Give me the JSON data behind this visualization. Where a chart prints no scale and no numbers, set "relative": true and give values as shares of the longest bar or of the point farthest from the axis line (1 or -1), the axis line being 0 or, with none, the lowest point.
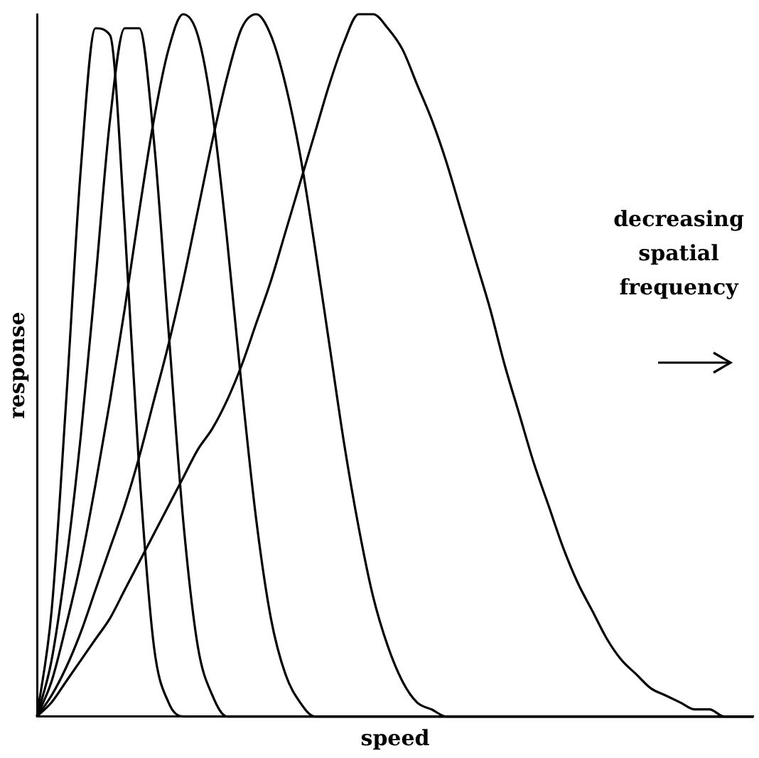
{
  "chart_data": {
    "type": "line",
    "relative": true,
    "xlabel": "speed",
    "ylabel": "response",
    "legend": false,
    "grid": false,
    "marker": "none",
    "line_style": "solid",
    "annotations": [
      "decreasing spatial frequency"
    ],
    "categories": [
      null,
      null,
      null,
      null,
      null,
      null,
      null,
      null,
      null,
      null,
      null,
      null,
      null,
      null,
      null,
      null,
      null,
      null,
      null,
      null,
      null,
      null,
      null,
      null,
      null,
      null,
      null,
      null,
      null,
      null,
      null,
      null,
      null,
      null,
      null,
      null,
      null,
      null,
      null,
      null,
      null,
      null,
      null,
      null,
      null,
      null,
      null,
      null,
      null,
      null
    ],
    "series": [
      {
        "color": "#000000",
        "values": [
          0,
          0.15,
          0.45,
          0.78,
          0.98,
          0.97,
          0.7,
          0.35,
          0.1,
          0.02,
          0,
          0,
          0,
          0,
          0,
          0,
          0,
          0,
          0,
          0,
          0,
          0,
          0,
          0,
          0,
          0,
          0,
          0,
          0,
          0,
          0,
          0,
          0,
          0,
          0,
          0,
          0,
          0,
          0,
          0,
          0,
          0,
          0,
          0,
          0,
          0,
          0,
          0,
          0,
          0
        ]
      },
      {
        "color": "#000000",
        "values": [
          0,
          0.08,
          0.22,
          0.4,
          0.62,
          0.85,
          0.98,
          0.98,
          0.82,
          0.55,
          0.28,
          0.1,
          0.03,
          0,
          0,
          0,
          0,
          0,
          0,
          0,
          0,
          0,
          0,
          0,
          0,
          0,
          0,
          0,
          0,
          0,
          0,
          0,
          0,
          0,
          0,
          0,
          0,
          0,
          0,
          0,
          0,
          0,
          0,
          0,
          0,
          0,
          0,
          0,
          0,
          0
        ]
      },
      {
        "color": "#000000",
        "values": [
          0,
          0.05,
          0.13,
          0.22,
          0.33,
          0.45,
          0.58,
          0.72,
          0.85,
          0.95,
          1,
          0.97,
          0.86,
          0.68,
          0.47,
          0.28,
          0.14,
          0.06,
          0.02,
          0,
          0,
          0,
          0,
          0,
          0,
          0,
          0,
          0,
          0,
          0,
          0,
          0,
          0,
          0,
          0,
          0,
          0,
          0,
          0,
          0,
          0,
          0,
          0,
          0,
          0,
          0,
          0,
          0,
          0,
          0
        ]
      },
      {
        "color": "#000000",
        "values": [
          0,
          0.03,
          0.07,
          0.12,
          0.18,
          0.24,
          0.3,
          0.37,
          0.45,
          0.53,
          0.62,
          0.72,
          0.82,
          0.91,
          0.98,
          1,
          0.97,
          0.9,
          0.8,
          0.67,
          0.53,
          0.39,
          0.27,
          0.17,
          0.1,
          0.05,
          0.02,
          0.01,
          0,
          0,
          0,
          0,
          0,
          0,
          0,
          0,
          0,
          0,
          0,
          0,
          0,
          0,
          0,
          0,
          0,
          0,
          0,
          0,
          0,
          0
        ]
      },
      {
        "color": "#000000",
        "values": [
          0,
          0.02,
          0.05,
          0.08,
          0.11,
          0.14,
          0.18,
          0.22,
          0.26,
          0.3,
          0.34,
          0.38,
          0.41,
          0.45,
          0.5,
          0.56,
          0.62,
          0.69,
          0.76,
          0.83,
          0.9,
          0.96,
          1,
          1,
          0.98,
          0.95,
          0.9,
          0.85,
          0.79,
          0.72,
          0.65,
          0.58,
          0.5,
          0.43,
          0.36,
          0.3,
          0.24,
          0.19,
          0.15,
          0.11,
          0.08,
          0.06,
          0.04,
          0.03,
          0.02,
          0.01,
          0.01,
          0,
          0,
          0
        ]
      }
    ]
  }
}
